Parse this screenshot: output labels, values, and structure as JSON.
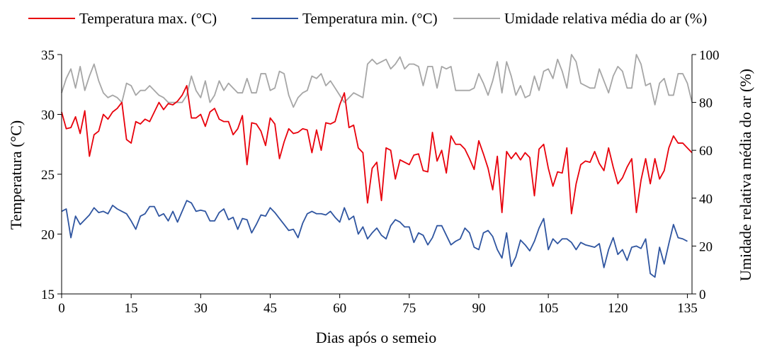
{
  "chart_data": {
    "type": "line",
    "title": "",
    "xlabel": "Dias após o semeio",
    "ylabel_left": "Temperatura (°C)",
    "ylabel_right": "Umidade relativa média do ar (%)",
    "xlim": [
      0,
      136
    ],
    "ylim_left": [
      15,
      35
    ],
    "ylim_right": [
      0,
      100
    ],
    "x_ticks": [
      0,
      15,
      30,
      45,
      60,
      75,
      90,
      105,
      120,
      135
    ],
    "y_ticks_left": [
      15,
      20,
      25,
      30,
      35
    ],
    "y_ticks_right": [
      0,
      20,
      40,
      60,
      80,
      100
    ],
    "grid": false,
    "legend_position": "top",
    "series": [
      {
        "name": "Temperatura max. (°C)",
        "axis": "left",
        "color": "#e8000b",
        "values": [
          30.2,
          28.8,
          28.9,
          29.8,
          28.4,
          30.3,
          26.5,
          28.3,
          28.6,
          30.0,
          29.6,
          30.2,
          30.5,
          31.0,
          27.9,
          27.6,
          29.4,
          29.2,
          29.6,
          29.4,
          30.2,
          31.0,
          30.4,
          30.9,
          30.8,
          31.1,
          31.6,
          32.4,
          29.7,
          29.7,
          30.0,
          29.0,
          30.2,
          30.5,
          29.6,
          29.4,
          29.4,
          28.3,
          28.8,
          29.9,
          25.8,
          29.3,
          29.2,
          28.6,
          27.4,
          29.7,
          29.2,
          26.3,
          27.7,
          28.8,
          28.4,
          28.5,
          28.8,
          28.7,
          26.8,
          28.7,
          27.0,
          29.3,
          29.2,
          29.4,
          30.8,
          31.8,
          28.9,
          29.1,
          27.2,
          26.8,
          22.6,
          25.5,
          26.0,
          22.8,
          27.2,
          27.0,
          24.6,
          26.2,
          26.0,
          25.8,
          26.6,
          26.7,
          25.3,
          25.2,
          28.5,
          26.1,
          27.0,
          25.1,
          28.2,
          27.5,
          27.5,
          27.1,
          26.3,
          25.4,
          27.8,
          26.7,
          25.5,
          23.7,
          26.5,
          21.8,
          26.9,
          26.3,
          26.8,
          26.2,
          26.8,
          26.4,
          23.2,
          27.1,
          27.5,
          25.5,
          24.0,
          25.2,
          25.1,
          27.2,
          21.7,
          24.2,
          25.8,
          26.1,
          26.0,
          26.9,
          25.9,
          25.3,
          27.2,
          25.6,
          24.2,
          24.7,
          25.6,
          26.3,
          21.8,
          24.5,
          26.3,
          24.2,
          26.3,
          24.6,
          25.3,
          27.2,
          28.2,
          27.6,
          27.6,
          27.2,
          26.8
        ]
      },
      {
        "name": "Temperatura min. (°C)",
        "axis": "left",
        "color": "#2f55a0",
        "values": [
          21.9,
          22.1,
          19.7,
          21.5,
          20.8,
          21.2,
          21.6,
          22.2,
          21.8,
          21.9,
          21.7,
          22.4,
          22.1,
          21.9,
          21.7,
          21.1,
          20.4,
          21.5,
          21.7,
          22.3,
          22.3,
          21.5,
          21.7,
          21.1,
          21.9,
          21.0,
          21.9,
          22.8,
          22.6,
          21.9,
          22.0,
          21.9,
          21.1,
          21.1,
          21.8,
          22.1,
          21.2,
          21.4,
          20.4,
          21.3,
          21.2,
          20.1,
          20.8,
          21.6,
          21.5,
          22.2,
          21.8,
          21.3,
          20.8,
          20.3,
          20.4,
          19.7,
          20.9,
          21.7,
          21.9,
          21.7,
          21.7,
          21.6,
          21.9,
          21.4,
          21.0,
          22.2,
          21.2,
          21.5,
          20.0,
          20.6,
          19.6,
          20.1,
          20.5,
          19.9,
          19.6,
          20.7,
          21.2,
          21.0,
          20.6,
          20.6,
          19.3,
          20.1,
          19.9,
          19.1,
          19.7,
          20.7,
          20.7,
          19.9,
          19.1,
          19.4,
          19.6,
          20.5,
          20.1,
          18.9,
          18.7,
          20.1,
          20.3,
          19.8,
          18.7,
          18.0,
          20.1,
          17.3,
          18.1,
          19.5,
          19.1,
          18.6,
          19.4,
          20.5,
          21.3,
          18.7,
          19.6,
          19.2,
          19.6,
          19.6,
          19.3,
          18.7,
          19.3,
          19.1,
          19.0,
          18.9,
          19.2,
          17.2,
          18.7,
          19.7,
          18.3,
          18.7,
          17.8,
          18.9,
          19.0,
          18.8,
          19.6,
          16.7,
          16.4,
          18.9,
          17.5,
          19.2,
          20.8,
          19.7,
          19.6,
          19.4
        ]
      },
      {
        "name": "Umidade relativa média do ar (%)",
        "axis": "right",
        "color": "#a6a6a6",
        "values": [
          84,
          90,
          94,
          86,
          95,
          85,
          91,
          96,
          89,
          84,
          82,
          83,
          82,
          80,
          88,
          87,
          83,
          85,
          85,
          87,
          85,
          83,
          82,
          80,
          80,
          80,
          80,
          83,
          91,
          85,
          82,
          89,
          80,
          83,
          89,
          85,
          88,
          86,
          84,
          84,
          90,
          84,
          84,
          92,
          92,
          85,
          86,
          93,
          92,
          83,
          78,
          82,
          84,
          85,
          91,
          90,
          92,
          87,
          89,
          86,
          83,
          80,
          82,
          84,
          83,
          82,
          96,
          98,
          96,
          97,
          98,
          94,
          96,
          99,
          94,
          96,
          96,
          95,
          87,
          95,
          95,
          86,
          95,
          94,
          95,
          85,
          85,
          85,
          85,
          86,
          92,
          88,
          83,
          89,
          97,
          84,
          97,
          91,
          83,
          87,
          82,
          83,
          91,
          85,
          93,
          94,
          90,
          98,
          93,
          86,
          100,
          97,
          88,
          87,
          86,
          86,
          94,
          89,
          84,
          91,
          95,
          93,
          86,
          86,
          100,
          96,
          87,
          88,
          79,
          88,
          90,
          83,
          83,
          92,
          92,
          88,
          80
        ]
      }
    ]
  }
}
